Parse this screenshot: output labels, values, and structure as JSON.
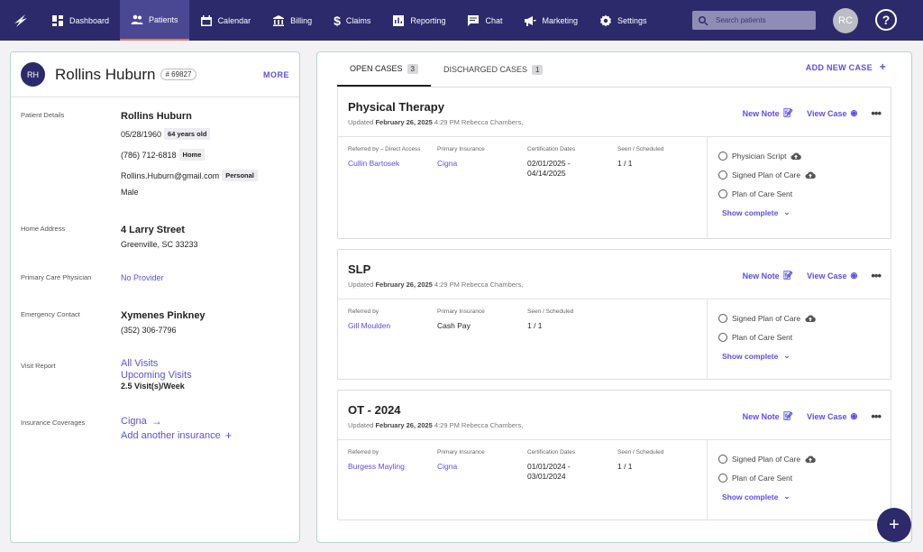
{
  "nav": {
    "items": [
      {
        "label": "Dashboard",
        "icon": "dashboard-icon"
      },
      {
        "label": "Patients",
        "icon": "people-icon"
      },
      {
        "label": "Calendar",
        "icon": "calendar-icon"
      },
      {
        "label": "Billing",
        "icon": "bank-icon"
      },
      {
        "label": "Claims",
        "icon": "dollar-icon"
      },
      {
        "label": "Reporting",
        "icon": "chart-icon"
      },
      {
        "label": "Chat",
        "icon": "chat-icon"
      },
      {
        "label": "Marketing",
        "icon": "megaphone-icon"
      },
      {
        "label": "Settings",
        "icon": "gear-icon"
      }
    ],
    "active": "Patients",
    "search_placeholder": "Search patients",
    "user_initials": "RC",
    "help": "?"
  },
  "patient": {
    "initials": "RH",
    "name": "Rollins Huburn",
    "id": "# 69827",
    "more": "MORE",
    "details_label": "Patient Details",
    "full_name": "Rollins Huburn",
    "dob": "05/28/1960",
    "age": "64 years old",
    "phone": "(786) 712-6818",
    "phone_type": "Home",
    "email": "Rollins.Huburn@gmail.com",
    "email_type": "Personal",
    "sex": "Male",
    "address_label": "Home Address",
    "street": "4 Larry Street",
    "city": "Greenville, SC 33233",
    "pcp_label": "Primary Care Physician",
    "pcp": "No Provider",
    "emergency_label": "Emergency Contact",
    "emergency_name": "Xymenes Pinkney",
    "emergency_phone": "(352) 306-7796",
    "visit_label": "Visit Report",
    "all_visits": "All Visits",
    "upcoming_visits": "Upcoming Visits",
    "visit_rate": "2.5 Visit(s)/Week",
    "insurance_label": "Insurance Coverages",
    "insurance": "Cigna",
    "add_insurance": "Add another insurance"
  },
  "cases": {
    "tab_open": "OPEN CASES",
    "tab_open_count": "3",
    "tab_discharged": "DISCHARGED CASES",
    "tab_discharged_count": "1",
    "add_case": "ADD NEW CASE",
    "new_note": "New Note",
    "view_case": "View Case",
    "show_complete": "Show complete",
    "list": [
      {
        "title": "Physical Therapy",
        "updated_prefix": "Updated",
        "date": "February 26, 2025",
        "time": "4:29 PM Rebecca Chambers,",
        "referred_label": "Referred by – Direct Access",
        "referred": "Cullin Bartosek",
        "insurance_label": "Primary Insurance",
        "insurance": "Cigna",
        "cert_label": "Certification Dates",
        "cert": "02/01/2025 - 04/14/2025",
        "seen_label": "Seen / Scheduled",
        "seen": "1 / 1",
        "checks": [
          {
            "label": "Physician Script",
            "cloud": true
          },
          {
            "label": "Signed Plan of Care",
            "cloud": true
          },
          {
            "label": "Plan of Care Sent",
            "cloud": false
          }
        ]
      },
      {
        "title": "SLP",
        "updated_prefix": "Updated",
        "date": "February 26, 2025",
        "time": "4:29 PM Rebecca Chambers,",
        "referred_label": "Referred by",
        "referred": "Gill Moulden",
        "insurance_label": "Primary Insurance",
        "insurance": "Cash Pay",
        "seen_label": "Seen / Scheduled",
        "seen": "1 / 1",
        "checks": [
          {
            "label": "Signed Plan of Care",
            "cloud": true
          },
          {
            "label": "Plan of Care Sent",
            "cloud": false
          }
        ]
      },
      {
        "title": "OT - 2024",
        "updated_prefix": "Updated",
        "date": "February 26, 2025",
        "time": "4:29 PM Rebecca Chambers,",
        "referred_label": "Referred by",
        "referred": "Burgess Mayling",
        "insurance_label": "Primary Insurance",
        "insurance": "Cigna",
        "cert_label": "Certification Dates",
        "cert": "01/01/2024 - 03/01/2024",
        "seen_label": "Seen / Scheduled",
        "seen": "1 / 1",
        "checks": [
          {
            "label": "Signed Plan of Care",
            "cloud": true
          },
          {
            "label": "Plan of Care Sent",
            "cloud": false
          }
        ]
      }
    ]
  },
  "fab": "+",
  "colors": {
    "nav_bg": "#2d2a6b",
    "accent": "#5a4fe6",
    "active_underline": "#e8774b"
  }
}
